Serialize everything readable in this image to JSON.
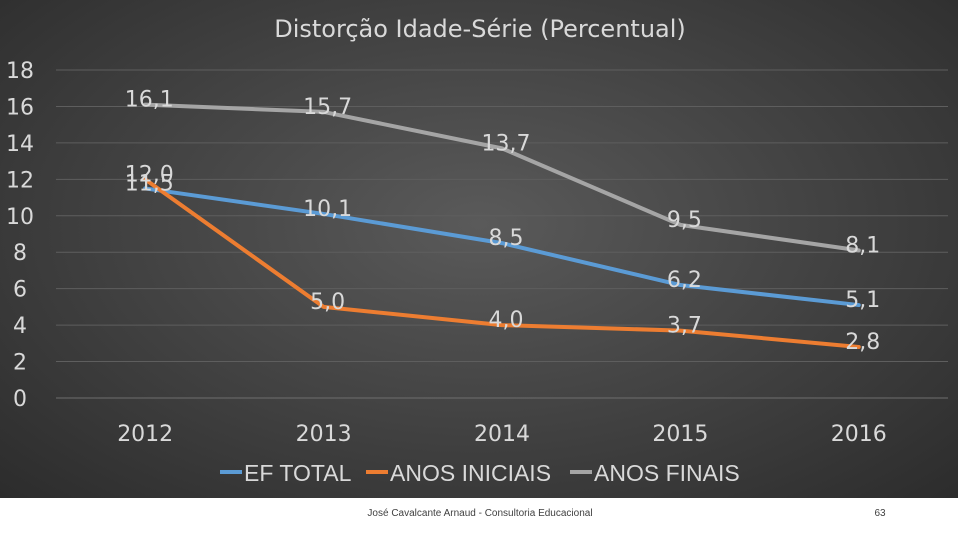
{
  "chart_data": {
    "type": "line",
    "title": "Distorção Idade-Série (Percentual)",
    "categories": [
      "2012",
      "2013",
      "2014",
      "2015",
      "2016"
    ],
    "ylim": [
      0,
      18
    ],
    "yticks": [
      "0",
      "2",
      "4",
      "6",
      "8",
      "10",
      "12",
      "14",
      "16",
      "18"
    ],
    "grid": true,
    "legend_position": "bottom",
    "series": [
      {
        "name": "EF TOTAL",
        "color": "#5b9bd5",
        "values": [
          11.5,
          10.1,
          8.5,
          6.2,
          5.1
        ],
        "labels": [
          "11,5",
          "10,1",
          "8,5",
          "6,2",
          "5,1"
        ]
      },
      {
        "name": "ANOS INICIAIS",
        "color": "#ed7d31",
        "values": [
          12.0,
          5.0,
          4.0,
          3.7,
          2.8
        ],
        "labels": [
          "12,0",
          "5,0",
          "4,0",
          "3,7",
          "2,8"
        ]
      },
      {
        "name": "ANOS FINAIS",
        "color": "#a5a5a5",
        "values": [
          16.1,
          15.7,
          13.7,
          9.5,
          8.1
        ],
        "labels": [
          "16,1",
          "15,7",
          "13,7",
          "9,5",
          "8,1"
        ]
      }
    ]
  },
  "footer": {
    "author": "José Cavalcante Arnaud - Consultoria Educacional",
    "page": "63"
  }
}
